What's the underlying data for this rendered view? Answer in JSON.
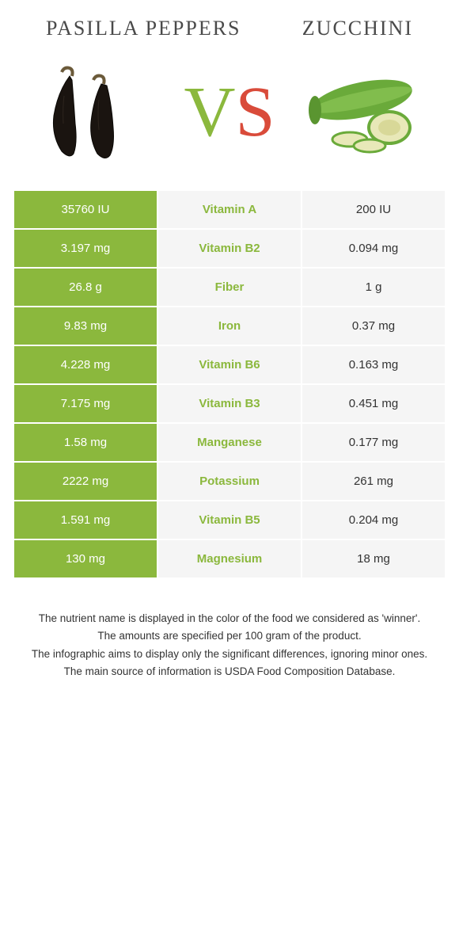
{
  "header": {
    "left_title": "Pasilla peppers",
    "right_title": "Zucchini",
    "vs_v": "V",
    "vs_s": "S"
  },
  "colors": {
    "left_bg": "#8bb83d",
    "mid_bg": "#f5f5f5",
    "mid_text_winner_left": "#8bb83d",
    "mid_text_winner_right": "#d94b3a",
    "right_winner_bg": "#d94b3a",
    "right_default_bg": "#f5f5f5"
  },
  "rows": [
    {
      "left": "35760 IU",
      "nutrient": "Vitamin A",
      "right": "200 IU",
      "winner": "left"
    },
    {
      "left": "3.197 mg",
      "nutrient": "Vitamin B2",
      "right": "0.094 mg",
      "winner": "left"
    },
    {
      "left": "26.8 g",
      "nutrient": "Fiber",
      "right": "1 g",
      "winner": "left"
    },
    {
      "left": "9.83 mg",
      "nutrient": "Iron",
      "right": "0.37 mg",
      "winner": "left"
    },
    {
      "left": "4.228 mg",
      "nutrient": "Vitamin B6",
      "right": "0.163 mg",
      "winner": "left"
    },
    {
      "left": "7.175 mg",
      "nutrient": "Vitamin B3",
      "right": "0.451 mg",
      "winner": "left"
    },
    {
      "left": "1.58 mg",
      "nutrient": "Manganese",
      "right": "0.177 mg",
      "winner": "left"
    },
    {
      "left": "2222 mg",
      "nutrient": "Potassium",
      "right": "261 mg",
      "winner": "left"
    },
    {
      "left": "1.591 mg",
      "nutrient": "Vitamin B5",
      "right": "0.204 mg",
      "winner": "left"
    },
    {
      "left": "130 mg",
      "nutrient": "Magnesium",
      "right": "18 mg",
      "winner": "left"
    }
  ],
  "footnotes": [
    "The nutrient name is displayed in the color of the food we considered as 'winner'.",
    "The amounts are specified per 100 gram of the product.",
    "The infographic aims to display only the significant differences, ignoring minor ones.",
    "The main source of information is USDA Food Composition Database."
  ]
}
